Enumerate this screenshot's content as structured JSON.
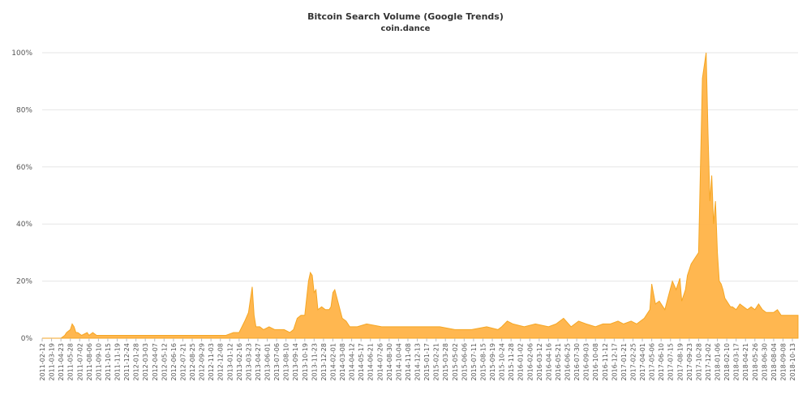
{
  "chart_data": {
    "type": "area",
    "title": "Bitcoin Search Volume (Google Trends)",
    "subtitle": "coin.dance",
    "xlabel": "",
    "ylabel": "",
    "ylim": [
      0,
      100
    ],
    "y_ticks": [
      "0%",
      "20%",
      "40%",
      "60%",
      "80%",
      "100%"
    ],
    "grid": true,
    "legend": "none",
    "color": "#ffb347",
    "x_tick_labels": [
      "2011-02-12",
      "2011-03-19",
      "2011-04-23",
      "2011-05-28",
      "2011-07-02",
      "2011-08-06",
      "2011-09-10",
      "2011-10-15",
      "2011-11-19",
      "2011-12-24",
      "2012-01-28",
      "2012-03-03",
      "2012-04-07",
      "2012-05-12",
      "2012-06-16",
      "2012-07-21",
      "2012-08-25",
      "2012-09-29",
      "2012-11-03",
      "2012-12-08",
      "2013-01-12",
      "2013-02-16",
      "2013-03-23",
      "2013-04-27",
      "2013-06-01",
      "2013-07-06",
      "2013-08-10",
      "2013-09-14",
      "2013-10-19",
      "2013-11-23",
      "2013-12-28",
      "2014-02-01",
      "2014-03-08",
      "2014-04-12",
      "2014-05-17",
      "2014-06-21",
      "2014-07-26",
      "2014-08-30",
      "2014-10-04",
      "2014-11-08",
      "2014-12-13",
      "2015-01-17",
      "2015-02-21",
      "2015-03-28",
      "2015-05-02",
      "2015-06-06",
      "2015-07-11",
      "2015-08-15",
      "2015-09-19",
      "2015-10-24",
      "2015-11-28",
      "2016-01-02",
      "2016-02-06",
      "2016-03-12",
      "2016-04-16",
      "2016-05-21",
      "2016-06-25",
      "2016-07-30",
      "2016-09-03",
      "2016-10-08",
      "2016-11-12",
      "2016-12-17",
      "2017-01-21",
      "2017-02-25",
      "2017-04-01",
      "2017-05-06",
      "2017-06-10",
      "2017-07-15",
      "2017-08-19",
      "2017-09-23",
      "2017-10-28",
      "2017-12-02",
      "2018-01-06",
      "2018-02-10",
      "2018-03-17",
      "2018-04-21",
      "2018-05-26",
      "2018-06-30",
      "2018-08-04",
      "2018-09-08",
      "2018-10-13"
    ],
    "x": [
      "2011-02-12",
      "2011-04-09",
      "2011-04-23",
      "2011-05-07",
      "2011-05-14",
      "2011-05-28",
      "2011-06-04",
      "2011-06-11",
      "2011-06-18",
      "2011-06-25",
      "2011-07-09",
      "2011-07-30",
      "2011-08-06",
      "2011-08-20",
      "2011-09-03",
      "2011-09-10",
      "2011-10-15",
      "2012-06-30",
      "2012-12-29",
      "2013-01-26",
      "2013-02-16",
      "2013-03-09",
      "2013-03-23",
      "2013-04-06",
      "2013-04-13",
      "2013-04-20",
      "2013-05-04",
      "2013-05-18",
      "2013-06-08",
      "2013-06-29",
      "2013-07-20",
      "2013-08-03",
      "2013-08-24",
      "2013-09-07",
      "2013-09-21",
      "2013-10-05",
      "2013-10-19",
      "2013-11-02",
      "2013-11-09",
      "2013-11-16",
      "2013-11-23",
      "2013-11-30",
      "2013-12-07",
      "2013-12-21",
      "2014-01-04",
      "2014-01-18",
      "2014-01-25",
      "2014-02-01",
      "2014-02-08",
      "2014-02-22",
      "2014-03-08",
      "2014-03-22",
      "2014-04-05",
      "2014-05-03",
      "2014-06-07",
      "2014-08-02",
      "2014-09-27",
      "2014-11-08",
      "2015-01-17",
      "2015-03-07",
      "2015-05-02",
      "2015-07-04",
      "2015-08-29",
      "2015-10-10",
      "2015-10-24",
      "2015-11-14",
      "2015-12-05",
      "2016-01-16",
      "2016-02-27",
      "2016-04-16",
      "2016-05-14",
      "2016-06-11",
      "2016-07-09",
      "2016-08-06",
      "2016-09-03",
      "2016-10-08",
      "2016-11-05",
      "2016-12-03",
      "2016-12-31",
      "2017-01-21",
      "2017-02-18",
      "2017-03-11",
      "2017-04-08",
      "2017-04-29",
      "2017-05-06",
      "2017-05-20",
      "2017-06-03",
      "2017-06-24",
      "2017-07-08",
      "2017-07-22",
      "2017-08-05",
      "2017-08-19",
      "2017-08-26",
      "2017-09-09",
      "2017-09-16",
      "2017-09-30",
      "2017-10-14",
      "2017-10-28",
      "2017-11-11",
      "2017-11-25",
      "2017-12-02",
      "2017-12-09",
      "2017-12-16",
      "2017-12-23",
      "2017-12-30",
      "2018-01-06",
      "2018-01-13",
      "2018-01-20",
      "2018-01-27",
      "2018-02-03",
      "2018-02-10",
      "2018-02-17",
      "2018-02-24",
      "2018-03-03",
      "2018-03-17",
      "2018-03-31",
      "2018-04-14",
      "2018-04-28",
      "2018-05-12",
      "2018-05-26",
      "2018-06-09",
      "2018-06-23",
      "2018-07-07",
      "2018-07-21",
      "2018-08-04",
      "2018-08-18",
      "2018-09-01",
      "2018-09-15",
      "2018-09-29",
      "2018-10-13",
      "2018-10-27",
      "2018-11-03"
    ],
    "values": [
      0,
      0,
      0,
      1,
      2,
      3,
      5,
      4,
      2,
      2,
      1,
      2,
      1,
      2,
      1,
      1,
      1,
      1,
      1,
      2,
      2,
      6,
      9,
      18,
      8,
      4,
      4,
      3,
      4,
      3,
      3,
      3,
      2,
      3,
      7,
      8,
      8,
      20,
      23,
      22,
      16,
      17,
      10,
      11,
      10,
      10,
      11,
      16,
      17,
      12,
      7,
      6,
      4,
      4,
      5,
      4,
      4,
      4,
      4,
      4,
      3,
      3,
      4,
      3,
      4,
      6,
      5,
      4,
      5,
      4,
      5,
      7,
      4,
      6,
      5,
      4,
      5,
      5,
      6,
      5,
      6,
      5,
      7,
      10,
      19,
      12,
      13,
      10,
      15,
      20,
      17,
      21,
      13,
      17,
      22,
      26,
      28,
      30,
      91,
      100,
      72,
      48,
      57,
      40,
      48,
      30,
      20,
      19,
      17,
      14,
      13,
      12,
      11,
      11,
      10,
      12,
      11,
      10,
      11,
      10,
      12,
      10,
      9,
      9,
      9,
      10,
      8,
      8,
      8,
      8,
      8,
      8
    ]
  }
}
